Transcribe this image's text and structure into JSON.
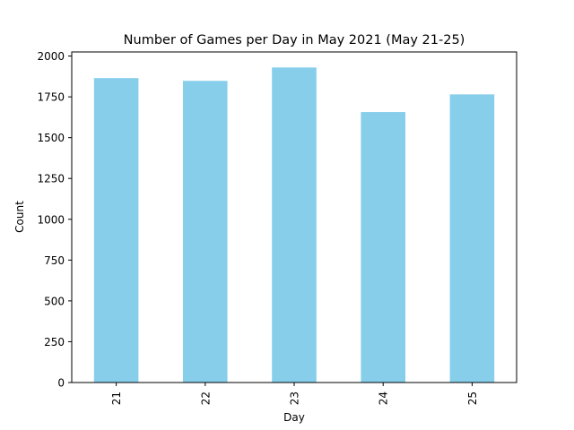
{
  "chart_data": {
    "type": "bar",
    "title": "Number of Games per Day in May 2021 (May 21-25)",
    "xlabel": "Day",
    "ylabel": "Count",
    "categories": [
      "21",
      "22",
      "23",
      "24",
      "25"
    ],
    "values": [
      1865,
      1848,
      1930,
      1657,
      1765
    ],
    "ylim": [
      0,
      2025
    ],
    "yticks": [
      0,
      250,
      500,
      750,
      1000,
      1250,
      1500,
      1750,
      2000
    ],
    "grid": false,
    "legend": "none",
    "bar_color": "#87ceeb"
  }
}
